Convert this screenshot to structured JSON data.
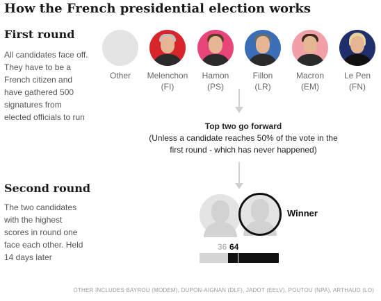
{
  "title": "How the French presidential election works",
  "first_round": {
    "heading": "First round",
    "description": "All candidates face off. They have to be a French citizen and have gathered 500 signatures from elected officials to run"
  },
  "candidates": [
    {
      "name": "Other",
      "party": ""
    },
    {
      "name": "Melenchon",
      "party": "(FI)",
      "ring_color": "#d7262b"
    },
    {
      "name": "Hamon",
      "party": "(PS)",
      "ring_color": "#e8457a"
    },
    {
      "name": "Fillon",
      "party": "(LR)",
      "ring_color": "#3a6fb7"
    },
    {
      "name": "Macron",
      "party": "(EM)",
      "ring_color": "#f2a0a8"
    },
    {
      "name": "Le Pen",
      "party": "(FN)",
      "ring_color": "#1f2f6b"
    }
  ],
  "transition": {
    "headline": "Top two go forward",
    "note": "(Unless a candidate reaches 50% of the vote in the first round - which has never happened)"
  },
  "second_round": {
    "heading": "Second round",
    "description": "The two candidates with the highest scores in round one face each other. Held 14 days later",
    "winner_label": "Winner",
    "loser_value": "36",
    "winner_value": "64",
    "loser_share": 36,
    "winner_share": 64
  },
  "footnote": "OTHER INCLUDES BAYROU (MODEM), DUPON-AIGNAN (DLF), JADOT (EELV), POUTOU (NPA), ARTHAUD (LO)",
  "colors": {
    "loser_bar": "#d6d6d6",
    "winner_bar": "#111111",
    "arrow": "#cfcfcf"
  }
}
